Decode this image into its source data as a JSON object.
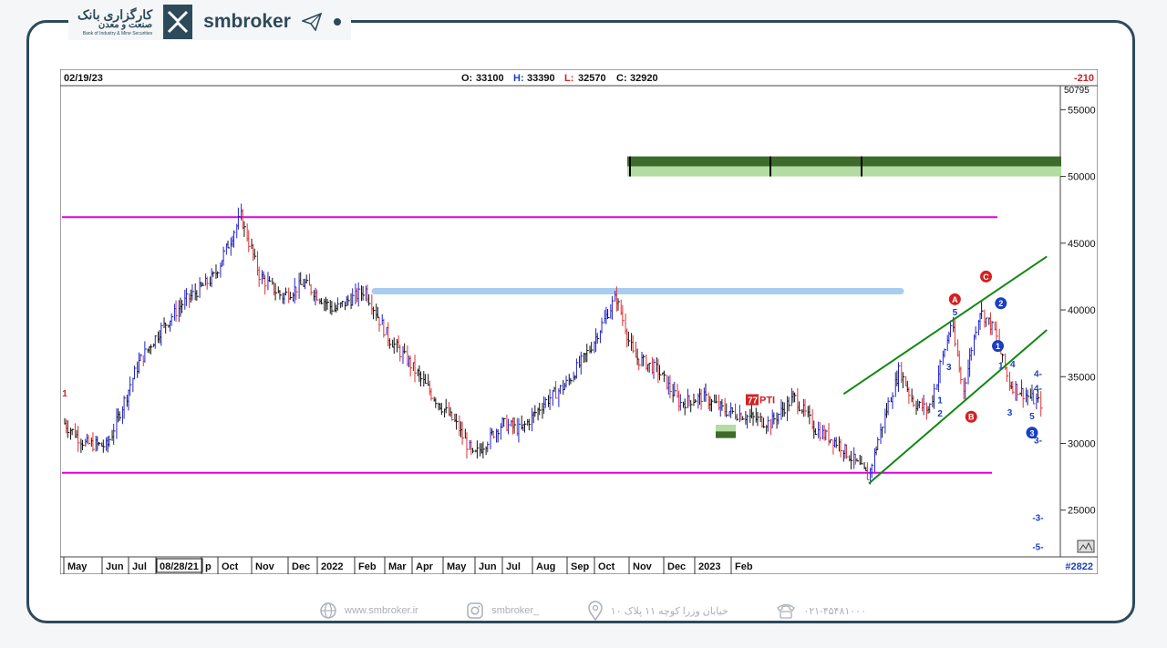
{
  "brand": {
    "logo_fa_line1": "کارگزاری بانک",
    "logo_fa_line2": "صنعت و معدن",
    "logo_en": "Bank of Industry & Mine Securities",
    "name": "smbroker"
  },
  "chart_header": {
    "date": "02/19/23",
    "open_label": "O:",
    "open": "33100",
    "high_label": "H:",
    "high": "33390",
    "low_label": "L:",
    "low": "32570",
    "close_label": "C:",
    "close": "32920",
    "change": "-210",
    "footer_id": "#2822",
    "badge": "PTI",
    "top_price_partial": "50795"
  },
  "chart_data": {
    "type": "bar",
    "x_labels": [
      "May",
      "Jun",
      "Jul",
      "08/28/21",
      "p",
      "Oct",
      "Nov",
      "Dec",
      "2022",
      "Feb",
      "Mar",
      "Apr",
      "May",
      "Jun",
      "Jul",
      "Aug",
      "Sep",
      "Oct",
      "Nov",
      "Dec",
      "2023",
      "Feb"
    ],
    "y_ticks": [
      25000,
      30000,
      35000,
      40000,
      45000,
      50000,
      55000
    ],
    "ylim": [
      21500,
      56800
    ],
    "x_range": [
      "2021-05-01",
      "2023-02-28"
    ],
    "closes": [
      [
        "2021-05-01",
        31500
      ],
      [
        "2021-05-15",
        30000
      ],
      [
        "2021-05-30",
        29800
      ],
      [
        "2021-06-10",
        33000
      ],
      [
        "2021-06-20",
        36000
      ],
      [
        "2021-07-05",
        38500
      ],
      [
        "2021-07-20",
        40500
      ],
      [
        "2021-08-10",
        42500
      ],
      [
        "2021-08-28",
        47000
      ],
      [
        "2021-09-10",
        42500
      ],
      [
        "2021-09-25",
        41000
      ],
      [
        "2021-10-10",
        42000
      ],
      [
        "2021-10-30",
        40000
      ],
      [
        "2021-11-20",
        41500
      ],
      [
        "2021-12-05",
        38000
      ],
      [
        "2021-12-20",
        36000
      ],
      [
        "2022-01-05",
        33500
      ],
      [
        "2022-01-20",
        31500
      ],
      [
        "2022-02-01",
        29000
      ],
      [
        "2022-02-20",
        31500
      ],
      [
        "2022-03-05",
        31000
      ],
      [
        "2022-03-20",
        33000
      ],
      [
        "2022-04-05",
        34500
      ],
      [
        "2022-04-20",
        37000
      ],
      [
        "2022-05-08",
        41000
      ],
      [
        "2022-05-20",
        36500
      ],
      [
        "2022-06-05",
        35500
      ],
      [
        "2022-06-20",
        33000
      ],
      [
        "2022-07-05",
        33500
      ],
      [
        "2022-07-20",
        32500
      ],
      [
        "2022-08-05",
        32000
      ],
      [
        "2022-08-20",
        31500
      ],
      [
        "2022-09-05",
        33500
      ],
      [
        "2022-09-20",
        31000
      ],
      [
        "2022-10-05",
        30000
      ],
      [
        "2022-10-25",
        27500
      ],
      [
        "2022-11-05",
        32000
      ],
      [
        "2022-11-15",
        35500
      ],
      [
        "2022-11-25",
        33000
      ],
      [
        "2022-12-05",
        32500
      ],
      [
        "2022-12-20",
        39000
      ],
      [
        "2022-12-28",
        34000
      ],
      [
        "2023-01-08",
        40000
      ],
      [
        "2023-01-18",
        38500
      ],
      [
        "2023-01-28",
        34500
      ],
      [
        "2023-02-10",
        33500
      ],
      [
        "2023-02-19",
        32920
      ]
    ],
    "annotations": [
      {
        "label": "1",
        "date": "2021-05-01",
        "price": 33500,
        "color": "#cc2222"
      },
      {
        "label": "A",
        "date": "2022-12-22",
        "price": 40800,
        "color": "#d42020",
        "type": "circle"
      },
      {
        "label": "C",
        "date": "2023-01-12",
        "price": 42500,
        "color": "#d42020",
        "type": "circle"
      },
      {
        "label": "B",
        "date": "2023-01-02",
        "price": 32000,
        "color": "#d42020",
        "type": "circle"
      },
      {
        "label": "2",
        "date": "2023-01-22",
        "price": 40500,
        "color": "#1a3fc0",
        "type": "circle"
      },
      {
        "label": "1",
        "date": "2023-01-20",
        "price": 37300,
        "color": "#1a3fc0",
        "type": "circle"
      },
      {
        "label": "3",
        "date": "2023-02-12",
        "price": 30800,
        "color": "#1a3fc0",
        "type": "circle"
      },
      {
        "label": "5",
        "date": "2022-12-22",
        "price": 39600,
        "color": "#1a3fc0"
      },
      {
        "label": "3",
        "date": "2022-12-18",
        "price": 35500,
        "color": "#1a3fc0"
      },
      {
        "label": "1",
        "date": "2022-12-12",
        "price": 33000,
        "color": "#1a3fc0"
      },
      {
        "label": "2",
        "date": "2022-12-12",
        "price": 32000,
        "color": "#1a3fc0"
      },
      {
        "label": "1",
        "date": "2023-01-22",
        "price": 35600,
        "color": "#1a3fc0"
      },
      {
        "label": "4",
        "date": "2023-01-30",
        "price": 35700,
        "color": "#1a3fc0"
      },
      {
        "label": "3",
        "date": "2023-01-28",
        "price": 32100,
        "color": "#1a3fc0"
      },
      {
        "label": "5",
        "date": "2023-02-12",
        "price": 31800,
        "color": "#1a3fc0"
      },
      {
        "label": "4-",
        "date": "2023-02-16",
        "price": 35000,
        "color": "#1a3fc0"
      },
      {
        "label": "4-",
        "date": "2023-02-16",
        "price": 33900,
        "color": "#1a3fc0"
      },
      {
        "label": "3-",
        "date": "2023-02-16",
        "price": 30000,
        "color": "#1a3fc0"
      },
      {
        "label": "-3-",
        "date": "2023-02-16",
        "price": 24200,
        "color": "#1a3fc0"
      },
      {
        "label": "-5-",
        "date": "2023-02-16",
        "price": 22000,
        "color": "#1a3fc0"
      }
    ],
    "lines": {
      "magenta_top": 46950,
      "magenta_bottom": 27800,
      "blue_band": 41400,
      "green_zone_top": [
        51500,
        50000
      ],
      "small_green_zone": [
        31400,
        30400
      ]
    },
    "colors": {
      "up": "#2222cc",
      "down": "#e03030",
      "neutral": "#111111",
      "magenta": "#e000e0",
      "channel": "#118811",
      "band": "#a8cdf0",
      "zone_dark": "#3d6b2c",
      "zone_light": "#b3dca2"
    }
  },
  "footer": {
    "website": "www.smbroker.ir",
    "instagram": "smbroker_",
    "address": "خیابان وزرا کوچه ۱۱ پلاک ۱۰",
    "phone": "۰۲۱-۴۵۴۸۱۰۰۰"
  }
}
